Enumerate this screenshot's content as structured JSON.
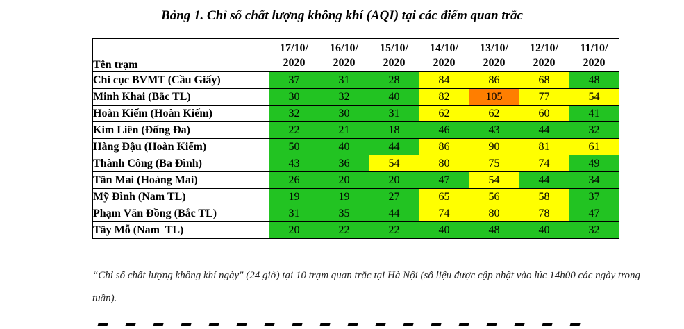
{
  "title": "Bảng 1. Chỉ số chất lượng không khí (AQI) tại các điểm quan trắc",
  "table": {
    "station_header": "Tên trạm",
    "dates": [
      {
        "day": "17/10/",
        "year": "2020"
      },
      {
        "day": "16/10/",
        "year": "2020"
      },
      {
        "day": "15/10/",
        "year": "2020"
      },
      {
        "day": "14/10/",
        "year": "2020"
      },
      {
        "day": "13/10/",
        "year": "2020"
      },
      {
        "day": "12/10/",
        "year": "2020"
      },
      {
        "day": "11/10/",
        "year": "2020"
      }
    ],
    "rows": [
      {
        "name": "Chi cục BVMT (Cầu Giấy)",
        "values": [
          37,
          31,
          28,
          84,
          86,
          68,
          48
        ]
      },
      {
        "name": "Minh Khai (Bắc TL)",
        "values": [
          30,
          32,
          40,
          82,
          105,
          77,
          54
        ]
      },
      {
        "name": "Hoàn Kiếm (Hoàn Kiếm)",
        "values": [
          32,
          30,
          31,
          62,
          62,
          60,
          41
        ]
      },
      {
        "name": "Kim Liên (Đống Đa)",
        "values": [
          22,
          21,
          18,
          46,
          43,
          44,
          32
        ]
      },
      {
        "name": "Hàng Đậu (Hoàn Kiếm)",
        "values": [
          50,
          40,
          44,
          86,
          90,
          81,
          61
        ]
      },
      {
        "name": "Thành Công (Ba Đình)",
        "values": [
          43,
          36,
          54,
          80,
          75,
          74,
          49
        ]
      },
      {
        "name": "Tân Mai (Hoàng Mai)",
        "values": [
          26,
          20,
          20,
          47,
          54,
          44,
          34
        ]
      },
      {
        "name": "Mỹ Đình (Nam TL)",
        "values": [
          19,
          19,
          27,
          65,
          56,
          58,
          37
        ]
      },
      {
        "name": "Phạm Văn Đồng (Bắc TL)",
        "values": [
          31,
          35,
          44,
          74,
          80,
          78,
          47
        ]
      },
      {
        "name": "Tây Mỗ (Nam  TL)",
        "values": [
          20,
          22,
          22,
          40,
          48,
          40,
          32
        ]
      }
    ],
    "colors": {
      "good": "#22c322",
      "moderate": "#ffff00",
      "unhealthy_sensitive": "#ff7e00"
    }
  },
  "caption": "“Chỉ số chất lượng không khí ngày\" (24 giờ) tại 10 trạm quan trắc tại Hà Nội (số liệu được cập nhật vào lúc 14h00 các ngày trong tuần)."
}
